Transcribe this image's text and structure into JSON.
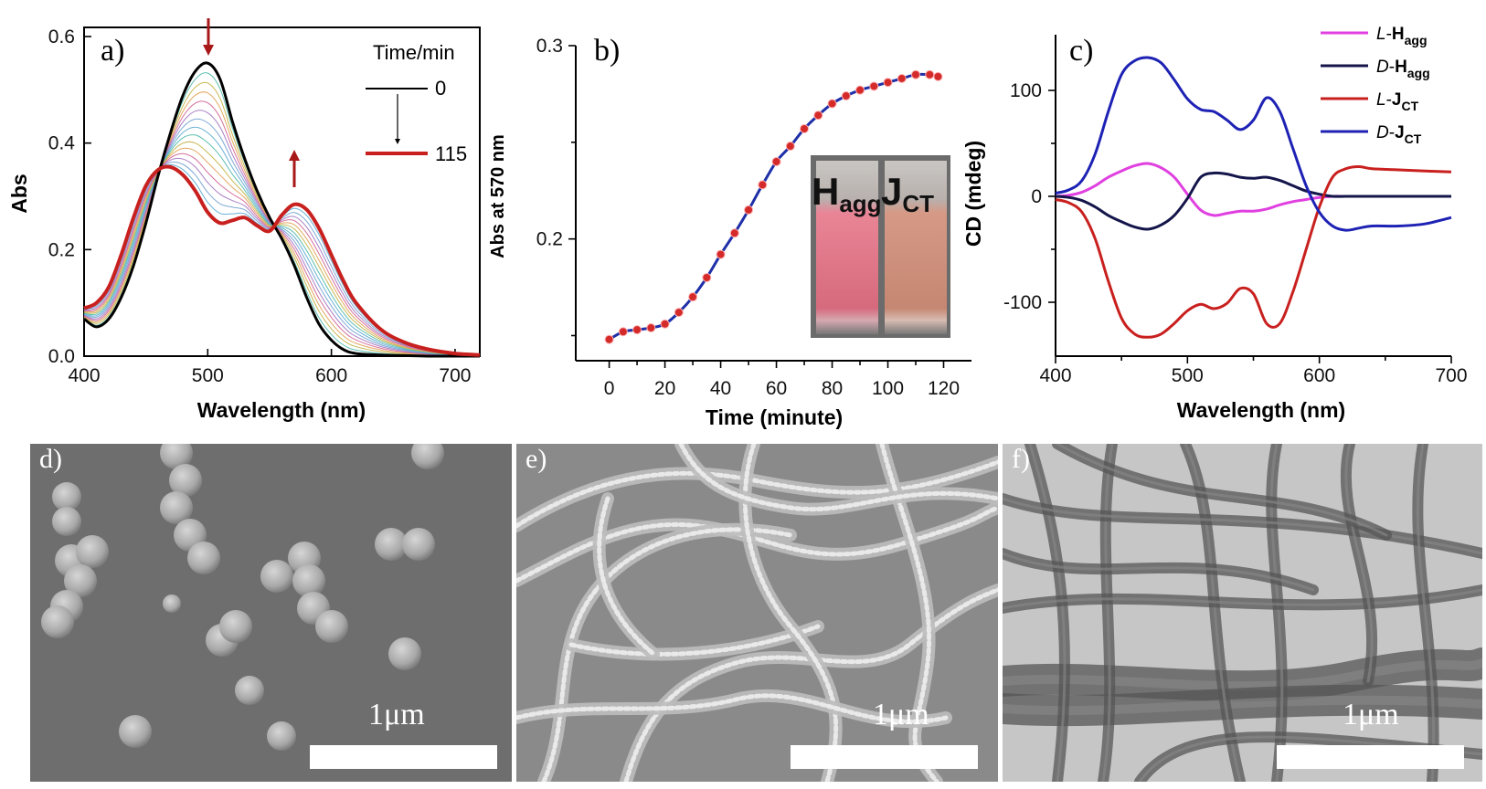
{
  "colors": {
    "a_start": "#000000",
    "a_end": "#c8201e",
    "b_line": "#1f2fa8",
    "b_marker": "#d42a2a",
    "L_H": "#e040e0",
    "D_H": "#14154a",
    "L_J": "#c8201e",
    "D_J": "#1e22b4",
    "arrow": "#a81818"
  },
  "panel_a": {
    "label": "a)",
    "xlabel": "Wavelength (nm)",
    "ylabel": "Abs",
    "xticks": [
      "400",
      "500",
      "600",
      "700"
    ],
    "yticks": [
      "0.0",
      "0.2",
      "0.4",
      "0.6"
    ],
    "legend": {
      "title": "Time/min",
      "start": "0",
      "end": "115"
    }
  },
  "panel_b": {
    "label": "b)",
    "xlabel": "Time (minute)",
    "ylabel": "Abs at 570 nm",
    "xticks": [
      "0",
      "20",
      "40",
      "60",
      "80",
      "100",
      "120"
    ],
    "yticks": [
      "0.2",
      "0.3"
    ],
    "inset_left": "H",
    "inset_left_sub": "agg",
    "inset_right": "J",
    "inset_right_sub": "CT"
  },
  "panel_c": {
    "label": "c)",
    "xlabel": "Wavelength (nm)",
    "ylabel": "CD (mdeg)",
    "xticks": [
      "400",
      "500",
      "600",
      "700"
    ],
    "yticks": [
      "100",
      "0",
      "-100"
    ],
    "legend": [
      {
        "pre": "L",
        "mid": "-",
        "main": "H",
        "sub": "agg"
      },
      {
        "pre": "D",
        "mid": "-",
        "main": "H",
        "sub": "agg"
      },
      {
        "pre": "L",
        "mid": "-",
        "main": "J",
        "sub": "CT"
      },
      {
        "pre": "D",
        "mid": "-",
        "main": "J",
        "sub": "CT"
      }
    ]
  },
  "panel_d": {
    "label": "d)",
    "scale": "1μm"
  },
  "panel_e": {
    "label": "e)",
    "scale": "1μm"
  },
  "panel_f": {
    "label": "f)",
    "scale": "1μm"
  },
  "chart_data": [
    {
      "type": "line",
      "panel": "a",
      "xlabel": "Wavelength (nm)",
      "ylabel": "Abs",
      "xlim": [
        400,
        720
      ],
      "ylim": [
        0,
        0.6
      ],
      "series": [
        {
          "name": "0",
          "x": [
            400,
            410,
            420,
            430,
            440,
            450,
            460,
            470,
            480,
            490,
            500,
            510,
            520,
            530,
            540,
            550,
            560,
            570,
            580,
            590,
            600,
            610,
            620,
            640,
            660,
            680,
            700,
            720
          ],
          "values": [
            0.07,
            0.055,
            0.07,
            0.11,
            0.17,
            0.25,
            0.34,
            0.42,
            0.49,
            0.535,
            0.55,
            0.52,
            0.44,
            0.37,
            0.31,
            0.26,
            0.22,
            0.17,
            0.11,
            0.06,
            0.03,
            0.012,
            0.005,
            0.002,
            0.001,
            0,
            0,
            0
          ]
        },
        {
          "name": "115",
          "x": [
            400,
            410,
            420,
            430,
            440,
            450,
            460,
            470,
            480,
            490,
            500,
            510,
            520,
            530,
            540,
            550,
            560,
            570,
            580,
            590,
            600,
            610,
            620,
            640,
            660,
            680,
            700,
            720
          ],
          "values": [
            0.09,
            0.1,
            0.13,
            0.19,
            0.26,
            0.32,
            0.35,
            0.355,
            0.34,
            0.31,
            0.27,
            0.25,
            0.255,
            0.26,
            0.245,
            0.235,
            0.265,
            0.285,
            0.275,
            0.24,
            0.19,
            0.14,
            0.1,
            0.05,
            0.025,
            0.012,
            0.005,
            0.002
          ]
        }
      ]
    },
    {
      "type": "line",
      "panel": "b",
      "xlabel": "Time (minute)",
      "ylabel": "Abs at 570 nm",
      "xlim": [
        -12,
        130
      ],
      "ylim": [
        0.137,
        0.3
      ],
      "x": [
        0,
        5,
        10,
        15,
        20,
        25,
        30,
        35,
        40,
        45,
        50,
        55,
        60,
        65,
        70,
        75,
        80,
        85,
        90,
        95,
        100,
        105,
        110,
        115,
        118
      ],
      "values": [
        0.148,
        0.152,
        0.153,
        0.154,
        0.156,
        0.162,
        0.17,
        0.18,
        0.192,
        0.203,
        0.215,
        0.228,
        0.24,
        0.248,
        0.257,
        0.264,
        0.27,
        0.274,
        0.277,
        0.279,
        0.281,
        0.283,
        0.285,
        0.285,
        0.284
      ]
    },
    {
      "type": "line",
      "panel": "c",
      "xlabel": "Wavelength (nm)",
      "ylabel": "CD (mdeg)",
      "xlim": [
        400,
        700
      ],
      "ylim": [
        -150,
        150
      ],
      "x": [
        400,
        410,
        420,
        430,
        440,
        450,
        460,
        470,
        480,
        490,
        500,
        510,
        520,
        530,
        540,
        550,
        560,
        570,
        580,
        590,
        600,
        610,
        620,
        630,
        640,
        660,
        680,
        700
      ],
      "series": [
        {
          "name": "L-Hagg",
          "values": [
            0,
            1,
            4,
            10,
            18,
            24,
            29,
            31,
            27,
            18,
            2,
            -13,
            -18,
            -16,
            -14,
            -14,
            -12,
            -8,
            -5,
            -3,
            -1,
            0,
            0,
            0,
            0,
            0,
            0,
            0
          ]
        },
        {
          "name": "D-Hagg",
          "values": [
            0,
            -1,
            -4,
            -10,
            -18,
            -24,
            -29,
            -31,
            -27,
            -18,
            -2,
            18,
            22,
            21,
            18,
            17,
            18,
            15,
            10,
            5,
            2,
            0,
            0,
            0,
            0,
            0,
            0,
            0
          ]
        },
        {
          "name": "L-JCT",
          "values": [
            -3,
            -6,
            -15,
            -40,
            -80,
            -115,
            -130,
            -133,
            -130,
            -120,
            -108,
            -102,
            -106,
            -101,
            -87,
            -92,
            -120,
            -120,
            -90,
            -50,
            -10,
            18,
            26,
            28,
            26,
            25,
            24,
            23
          ]
        },
        {
          "name": "D-JCT",
          "values": [
            3,
            6,
            15,
            40,
            80,
            115,
            128,
            131,
            126,
            110,
            92,
            82,
            80,
            72,
            63,
            72,
            93,
            80,
            45,
            10,
            -15,
            -28,
            -32,
            -30,
            -28,
            -28,
            -26,
            -20
          ]
        }
      ]
    }
  ]
}
